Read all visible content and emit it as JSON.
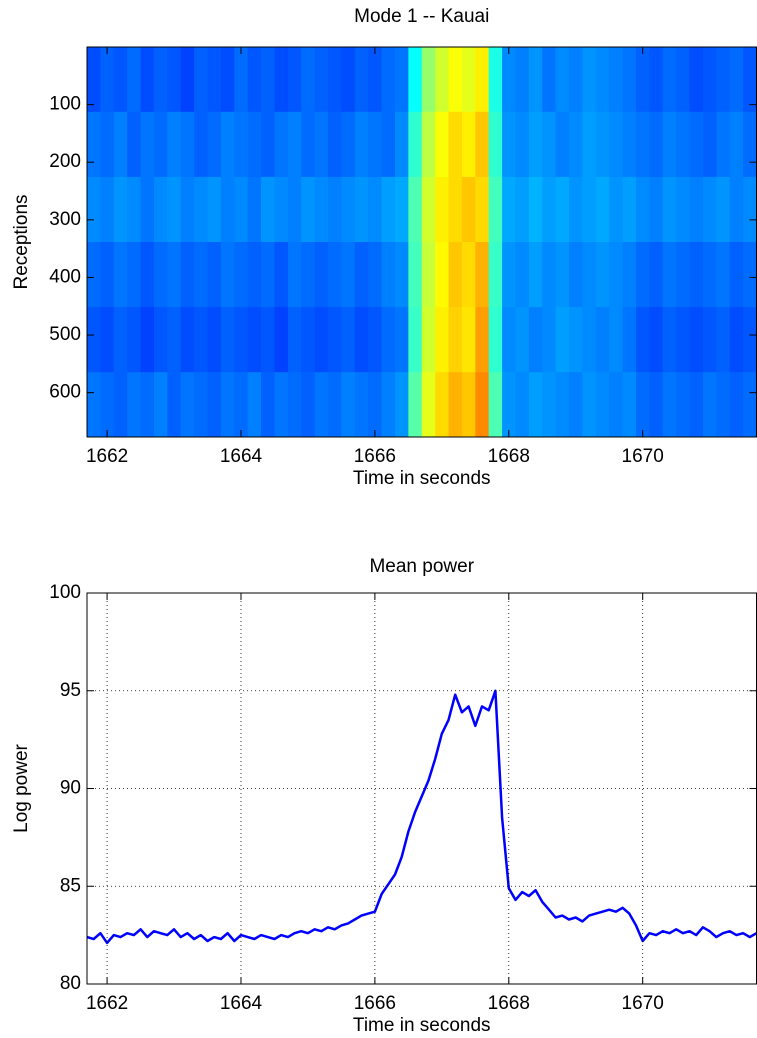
{
  "chart_data": [
    {
      "type": "heatmap",
      "title": "Mode 1 -- Kauai",
      "xlabel": "Time in seconds",
      "ylabel": "Receptions",
      "colormap": "jet",
      "zlim": [
        0,
        1
      ],
      "yreverse": true,
      "xlim": [
        1661.7,
        1671.7
      ],
      "xticks": [
        1662,
        1664,
        1666,
        1668,
        1670
      ],
      "ylim": [
        0,
        677
      ],
      "yticks": [
        100,
        200,
        300,
        400,
        500,
        600
      ],
      "x": [
        1661.8,
        1662.0,
        1662.2,
        1662.4,
        1662.6,
        1662.8,
        1663.0,
        1663.2,
        1663.4,
        1663.6,
        1663.8,
        1664.0,
        1664.2,
        1664.4,
        1664.6,
        1664.8,
        1665.0,
        1665.2,
        1665.4,
        1665.6,
        1665.8,
        1666.0,
        1666.2,
        1666.4,
        1666.6,
        1666.8,
        1667.0,
        1667.2,
        1667.4,
        1667.6,
        1667.8,
        1668.0,
        1668.2,
        1668.4,
        1668.6,
        1668.8,
        1669.0,
        1669.2,
        1669.4,
        1669.6,
        1669.8,
        1670.0,
        1670.2,
        1670.4,
        1670.6,
        1670.8,
        1671.0,
        1671.2,
        1671.4,
        1671.6
      ],
      "y": [
        56,
        169,
        282,
        395,
        508,
        621
      ],
      "values": [
        [
          0.2,
          0.22,
          0.21,
          0.23,
          0.2,
          0.22,
          0.21,
          0.19,
          0.22,
          0.21,
          0.2,
          0.23,
          0.21,
          0.22,
          0.2,
          0.21,
          0.23,
          0.22,
          0.21,
          0.2,
          0.22,
          0.21,
          0.23,
          0.24,
          0.38,
          0.52,
          0.58,
          0.62,
          0.6,
          0.64,
          0.4,
          0.26,
          0.25,
          0.27,
          0.24,
          0.26,
          0.25,
          0.27,
          0.26,
          0.25,
          0.24,
          0.22,
          0.21,
          0.23,
          0.22,
          0.2,
          0.21,
          0.22,
          0.23,
          0.21
        ],
        [
          0.24,
          0.23,
          0.25,
          0.22,
          0.24,
          0.23,
          0.25,
          0.24,
          0.22,
          0.23,
          0.25,
          0.24,
          0.23,
          0.22,
          0.24,
          0.25,
          0.23,
          0.24,
          0.22,
          0.23,
          0.25,
          0.24,
          0.23,
          0.26,
          0.42,
          0.56,
          0.62,
          0.66,
          0.64,
          0.68,
          0.42,
          0.27,
          0.26,
          0.28,
          0.27,
          0.25,
          0.26,
          0.28,
          0.27,
          0.26,
          0.25,
          0.24,
          0.23,
          0.25,
          0.24,
          0.23,
          0.22,
          0.24,
          0.25,
          0.23
        ],
        [
          0.26,
          0.25,
          0.27,
          0.26,
          0.24,
          0.26,
          0.27,
          0.25,
          0.26,
          0.27,
          0.25,
          0.26,
          0.24,
          0.27,
          0.26,
          0.25,
          0.27,
          0.26,
          0.25,
          0.26,
          0.27,
          0.26,
          0.28,
          0.29,
          0.45,
          0.58,
          0.64,
          0.66,
          0.68,
          0.66,
          0.44,
          0.29,
          0.28,
          0.3,
          0.28,
          0.29,
          0.27,
          0.28,
          0.29,
          0.27,
          0.28,
          0.26,
          0.25,
          0.27,
          0.26,
          0.25,
          0.26,
          0.27,
          0.25,
          0.26
        ],
        [
          0.23,
          0.22,
          0.24,
          0.23,
          0.21,
          0.23,
          0.24,
          0.22,
          0.23,
          0.22,
          0.24,
          0.23,
          0.22,
          0.23,
          0.21,
          0.24,
          0.23,
          0.22,
          0.23,
          0.24,
          0.22,
          0.23,
          0.25,
          0.26,
          0.44,
          0.57,
          0.63,
          0.68,
          0.66,
          0.7,
          0.43,
          0.27,
          0.26,
          0.28,
          0.26,
          0.27,
          0.25,
          0.26,
          0.27,
          0.26,
          0.25,
          0.23,
          0.22,
          0.24,
          0.23,
          0.22,
          0.23,
          0.24,
          0.22,
          0.23
        ],
        [
          0.21,
          0.2,
          0.22,
          0.21,
          0.19,
          0.21,
          0.22,
          0.2,
          0.21,
          0.2,
          0.22,
          0.21,
          0.2,
          0.21,
          0.19,
          0.22,
          0.21,
          0.2,
          0.21,
          0.22,
          0.2,
          0.21,
          0.23,
          0.24,
          0.43,
          0.58,
          0.64,
          0.67,
          0.65,
          0.72,
          0.42,
          0.26,
          0.27,
          0.25,
          0.26,
          0.28,
          0.27,
          0.26,
          0.25,
          0.26,
          0.24,
          0.21,
          0.2,
          0.22,
          0.21,
          0.2,
          0.21,
          0.22,
          0.2,
          0.21
        ],
        [
          0.24,
          0.23,
          0.22,
          0.24,
          0.23,
          0.25,
          0.22,
          0.24,
          0.23,
          0.22,
          0.24,
          0.23,
          0.25,
          0.22,
          0.24,
          0.23,
          0.22,
          0.24,
          0.23,
          0.25,
          0.24,
          0.23,
          0.25,
          0.27,
          0.46,
          0.6,
          0.66,
          0.7,
          0.68,
          0.74,
          0.45,
          0.27,
          0.26,
          0.28,
          0.27,
          0.26,
          0.25,
          0.27,
          0.26,
          0.25,
          0.26,
          0.23,
          0.22,
          0.24,
          0.23,
          0.22,
          0.24,
          0.23,
          0.22,
          0.23
        ]
      ]
    },
    {
      "type": "line",
      "title": "Mean power",
      "xlabel": "Time in seconds",
      "ylabel": "Log power",
      "color": "#0000ff",
      "grid": true,
      "xlim": [
        1661.7,
        1671.7
      ],
      "xticks": [
        1662,
        1664,
        1666,
        1668,
        1670
      ],
      "ylim": [
        80,
        100
      ],
      "yticks": [
        80,
        85,
        90,
        95,
        100
      ],
      "x": [
        1661.7,
        1661.8,
        1661.9,
        1662.0,
        1662.1,
        1662.2,
        1662.3,
        1662.4,
        1662.5,
        1662.6,
        1662.7,
        1662.8,
        1662.9,
        1663.0,
        1663.1,
        1663.2,
        1663.3,
        1663.4,
        1663.5,
        1663.6,
        1663.7,
        1663.8,
        1663.9,
        1664.0,
        1664.1,
        1664.2,
        1664.3,
        1664.4,
        1664.5,
        1664.6,
        1664.7,
        1664.8,
        1664.9,
        1665.0,
        1665.1,
        1665.2,
        1665.3,
        1665.4,
        1665.5,
        1665.6,
        1665.7,
        1665.8,
        1665.9,
        1666.0,
        1666.1,
        1666.2,
        1666.3,
        1666.4,
        1666.5,
        1666.6,
        1666.7,
        1666.8,
        1666.9,
        1667.0,
        1667.1,
        1667.2,
        1667.3,
        1667.4,
        1667.5,
        1667.6,
        1667.7,
        1667.8,
        1667.9,
        1668.0,
        1668.1,
        1668.2,
        1668.3,
        1668.4,
        1668.5,
        1668.6,
        1668.7,
        1668.8,
        1668.9,
        1669.0,
        1669.1,
        1669.2,
        1669.3,
        1669.4,
        1669.5,
        1669.6,
        1669.7,
        1669.8,
        1669.9,
        1670.0,
        1670.1,
        1670.2,
        1670.3,
        1670.4,
        1670.5,
        1670.6,
        1670.7,
        1670.8,
        1670.9,
        1671.0,
        1671.1,
        1671.2,
        1671.3,
        1671.4,
        1671.5,
        1671.6,
        1671.7
      ],
      "values": [
        82.4,
        82.3,
        82.6,
        82.1,
        82.5,
        82.4,
        82.6,
        82.5,
        82.8,
        82.4,
        82.7,
        82.6,
        82.5,
        82.8,
        82.4,
        82.6,
        82.3,
        82.5,
        82.2,
        82.4,
        82.3,
        82.6,
        82.2,
        82.5,
        82.4,
        82.3,
        82.5,
        82.4,
        82.3,
        82.5,
        82.4,
        82.6,
        82.7,
        82.6,
        82.8,
        82.7,
        82.9,
        82.8,
        83.0,
        83.1,
        83.3,
        83.5,
        83.6,
        83.7,
        84.6,
        85.1,
        85.6,
        86.5,
        87.8,
        88.8,
        89.6,
        90.4,
        91.5,
        92.8,
        93.5,
        94.8,
        93.9,
        94.2,
        93.2,
        94.2,
        94.0,
        95.0,
        88.5,
        84.9,
        84.3,
        84.7,
        84.5,
        84.8,
        84.2,
        83.8,
        83.4,
        83.5,
        83.3,
        83.4,
        83.2,
        83.5,
        83.6,
        83.7,
        83.8,
        83.7,
        83.9,
        83.6,
        83.0,
        82.2,
        82.6,
        82.5,
        82.7,
        82.6,
        82.8,
        82.6,
        82.7,
        82.5,
        82.9,
        82.7,
        82.4,
        82.6,
        82.7,
        82.5,
        82.6,
        82.4,
        82.6
      ]
    }
  ]
}
